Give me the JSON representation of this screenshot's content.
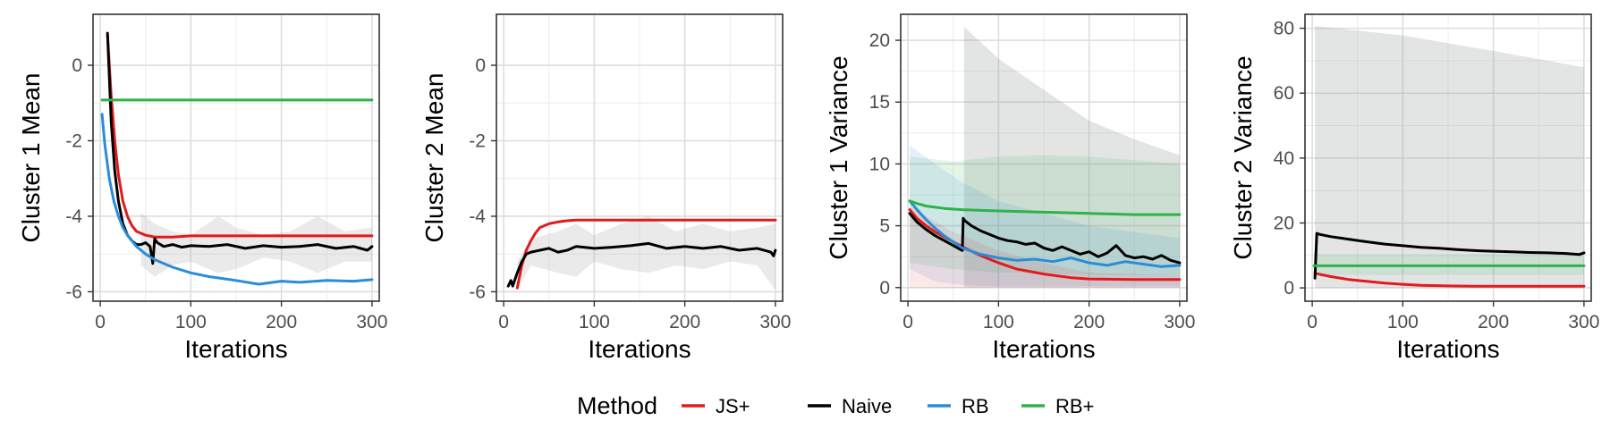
{
  "legend": {
    "title": "Method",
    "items": [
      {
        "label": "JS+",
        "color": "#e31a1c"
      },
      {
        "label": "Naive",
        "color": "#000000"
      },
      {
        "label": "RB",
        "color": "#2b8cd8"
      },
      {
        "label": "RB+",
        "color": "#2db34a"
      }
    ]
  },
  "chart_data": [
    {
      "type": "line",
      "title": "",
      "xlabel": "Iterations",
      "ylabel": "Cluster 1 Mean",
      "xlim": [
        -8,
        308
      ],
      "ylim": [
        -6.25,
        1.35
      ],
      "xticks": [
        0,
        100,
        200,
        300
      ],
      "yticks": [
        0,
        -2,
        -4,
        -6
      ],
      "grid": true,
      "series": [
        {
          "name": "JS+",
          "color": "#e31a1c",
          "x": [
            8,
            12,
            16,
            20,
            25,
            30,
            35,
            40,
            50,
            60,
            70,
            80,
            100,
            150,
            200,
            250,
            300
          ],
          "y": [
            0.8,
            -0.8,
            -2.0,
            -2.9,
            -3.6,
            -4.0,
            -4.25,
            -4.4,
            -4.5,
            -4.55,
            -4.55,
            -4.55,
            -4.52,
            -4.52,
            -4.52,
            -4.52,
            -4.52
          ]
        },
        {
          "name": "Naive",
          "color": "#000000",
          "x": [
            8,
            12,
            16,
            20,
            25,
            30,
            35,
            40,
            45,
            50,
            55,
            58,
            60,
            63,
            70,
            80,
            90,
            100,
            120,
            140,
            160,
            180,
            200,
            220,
            240,
            260,
            280,
            295,
            300
          ],
          "y": [
            0.85,
            -1.5,
            -2.8,
            -3.6,
            -4.2,
            -4.5,
            -4.65,
            -4.75,
            -4.75,
            -4.7,
            -4.8,
            -5.25,
            -4.6,
            -4.7,
            -4.8,
            -4.75,
            -4.82,
            -4.78,
            -4.8,
            -4.75,
            -4.85,
            -4.78,
            -4.82,
            -4.8,
            -4.75,
            -4.85,
            -4.8,
            -4.9,
            -4.8
          ]
        },
        {
          "name": "RB",
          "color": "#2b8cd8",
          "x": [
            2,
            5,
            10,
            15,
            20,
            25,
            30,
            40,
            50,
            60,
            80,
            100,
            120,
            150,
            175,
            200,
            220,
            250,
            280,
            300
          ],
          "y": [
            -1.3,
            -2.1,
            -3.0,
            -3.6,
            -4.0,
            -4.3,
            -4.5,
            -4.8,
            -5.0,
            -5.15,
            -5.35,
            -5.5,
            -5.6,
            -5.7,
            -5.8,
            -5.72,
            -5.75,
            -5.7,
            -5.72,
            -5.68
          ]
        },
        {
          "name": "RB+",
          "color": "#2db34a",
          "x": [
            2,
            300
          ],
          "y": [
            -0.92,
            -0.92
          ]
        }
      ]
    },
    {
      "type": "line",
      "title": "",
      "xlabel": "Iterations",
      "ylabel": "Cluster 2 Mean",
      "xlim": [
        -8,
        308
      ],
      "ylim": [
        -6.25,
        1.35
      ],
      "xticks": [
        0,
        100,
        200,
        300
      ],
      "yticks": [
        0,
        -2,
        -4,
        -6
      ],
      "grid": true,
      "series": [
        {
          "name": "JS+",
          "color": "#e31a1c",
          "x": [
            15,
            20,
            25,
            30,
            35,
            40,
            50,
            60,
            70,
            80,
            100,
            150,
            200,
            250,
            300
          ],
          "y": [
            -5.9,
            -5.3,
            -4.9,
            -4.65,
            -4.45,
            -4.3,
            -4.2,
            -4.15,
            -4.12,
            -4.1,
            -4.1,
            -4.1,
            -4.1,
            -4.1,
            -4.1
          ]
        },
        {
          "name": "Naive",
          "color": "#000000",
          "x": [
            5,
            8,
            10,
            15,
            20,
            25,
            30,
            40,
            50,
            60,
            70,
            80,
            100,
            120,
            140,
            160,
            180,
            200,
            220,
            240,
            260,
            280,
            295,
            298,
            300
          ],
          "y": [
            -5.85,
            -5.7,
            -5.85,
            -5.5,
            -5.2,
            -5.0,
            -4.95,
            -4.9,
            -4.85,
            -4.95,
            -4.9,
            -4.8,
            -4.85,
            -4.82,
            -4.78,
            -4.72,
            -4.85,
            -4.8,
            -4.85,
            -4.8,
            -4.9,
            -4.85,
            -4.95,
            -5.05,
            -4.9
          ]
        }
      ]
    },
    {
      "type": "line",
      "title": "",
      "xlabel": "Iterations",
      "ylabel": "Cluster 1 Variance",
      "xlim": [
        -8,
        308
      ],
      "ylim": [
        -1.1,
        22.1
      ],
      "xticks": [
        0,
        100,
        200,
        300
      ],
      "yticks": [
        0,
        5,
        10,
        15,
        20
      ],
      "grid": true,
      "series": [
        {
          "name": "JS+",
          "color": "#e31a1c",
          "x": [
            2,
            10,
            20,
            30,
            40,
            50,
            60,
            80,
            100,
            120,
            150,
            180,
            200,
            250,
            300
          ],
          "y": [
            6.3,
            5.6,
            5.0,
            4.5,
            4.1,
            3.7,
            3.3,
            2.6,
            2.0,
            1.5,
            1.1,
            0.8,
            0.7,
            0.65,
            0.65
          ]
        },
        {
          "name": "Naive",
          "color": "#000000",
          "x": [
            2,
            10,
            20,
            30,
            40,
            50,
            55,
            60,
            61,
            63,
            70,
            80,
            90,
            100,
            110,
            120,
            130,
            140,
            150,
            160,
            170,
            180,
            190,
            200,
            210,
            220,
            230,
            240,
            250,
            260,
            270,
            280,
            290,
            300
          ],
          "y": [
            6.0,
            5.3,
            4.7,
            4.2,
            3.8,
            3.4,
            3.2,
            3.0,
            5.6,
            5.4,
            5.0,
            4.6,
            4.3,
            4.0,
            3.8,
            3.7,
            3.5,
            3.6,
            3.2,
            3.0,
            3.3,
            3.0,
            2.7,
            2.9,
            2.5,
            2.8,
            3.4,
            2.6,
            2.4,
            2.5,
            2.3,
            2.6,
            2.2,
            2.0
          ]
        },
        {
          "name": "RB",
          "color": "#2b8cd8",
          "x": [
            2,
            10,
            20,
            30,
            40,
            50,
            60,
            80,
            100,
            120,
            140,
            160,
            180,
            200,
            220,
            240,
            260,
            280,
            300
          ],
          "y": [
            7.0,
            6.3,
            5.5,
            4.8,
            4.2,
            3.7,
            3.2,
            2.7,
            2.4,
            2.2,
            2.3,
            2.1,
            2.4,
            2.0,
            1.8,
            2.1,
            1.9,
            1.7,
            1.8
          ]
        },
        {
          "name": "RB+",
          "color": "#2db34a",
          "x": [
            2,
            10,
            20,
            40,
            60,
            100,
            150,
            200,
            250,
            300
          ],
          "y": [
            7.0,
            6.8,
            6.6,
            6.4,
            6.3,
            6.2,
            6.1,
            6.0,
            5.9,
            5.9
          ]
        }
      ]
    },
    {
      "type": "line",
      "title": "",
      "xlabel": "Iterations",
      "ylabel": "Cluster 2 Variance",
      "xlim": [
        -8,
        308
      ],
      "ylim": [
        -4.1,
        84.3
      ],
      "xticks": [
        0,
        100,
        200,
        300
      ],
      "yticks": [
        0,
        20,
        40,
        60,
        80
      ],
      "grid": true,
      "series": [
        {
          "name": "JS+",
          "color": "#e31a1c",
          "x": [
            3,
            20,
            40,
            60,
            80,
            100,
            120,
            150,
            180,
            200,
            250,
            300
          ],
          "y": [
            4.5,
            3.5,
            2.6,
            2.0,
            1.5,
            1.1,
            0.8,
            0.6,
            0.5,
            0.5,
            0.5,
            0.5
          ]
        },
        {
          "name": "Naive",
          "color": "#000000",
          "x": [
            3,
            5,
            8,
            20,
            40,
            60,
            80,
            100,
            120,
            140,
            160,
            180,
            200,
            220,
            240,
            260,
            280,
            295,
            300
          ],
          "y": [
            3.0,
            16.8,
            16.5,
            15.8,
            15.0,
            14.2,
            13.5,
            13.0,
            12.5,
            12.2,
            11.8,
            11.5,
            11.3,
            11.1,
            10.9,
            10.8,
            10.6,
            10.3,
            10.8
          ]
        },
        {
          "name": "RB+",
          "color": "#2db34a",
          "x": [
            2,
            300
          ],
          "y": [
            6.8,
            6.8
          ]
        }
      ]
    }
  ]
}
